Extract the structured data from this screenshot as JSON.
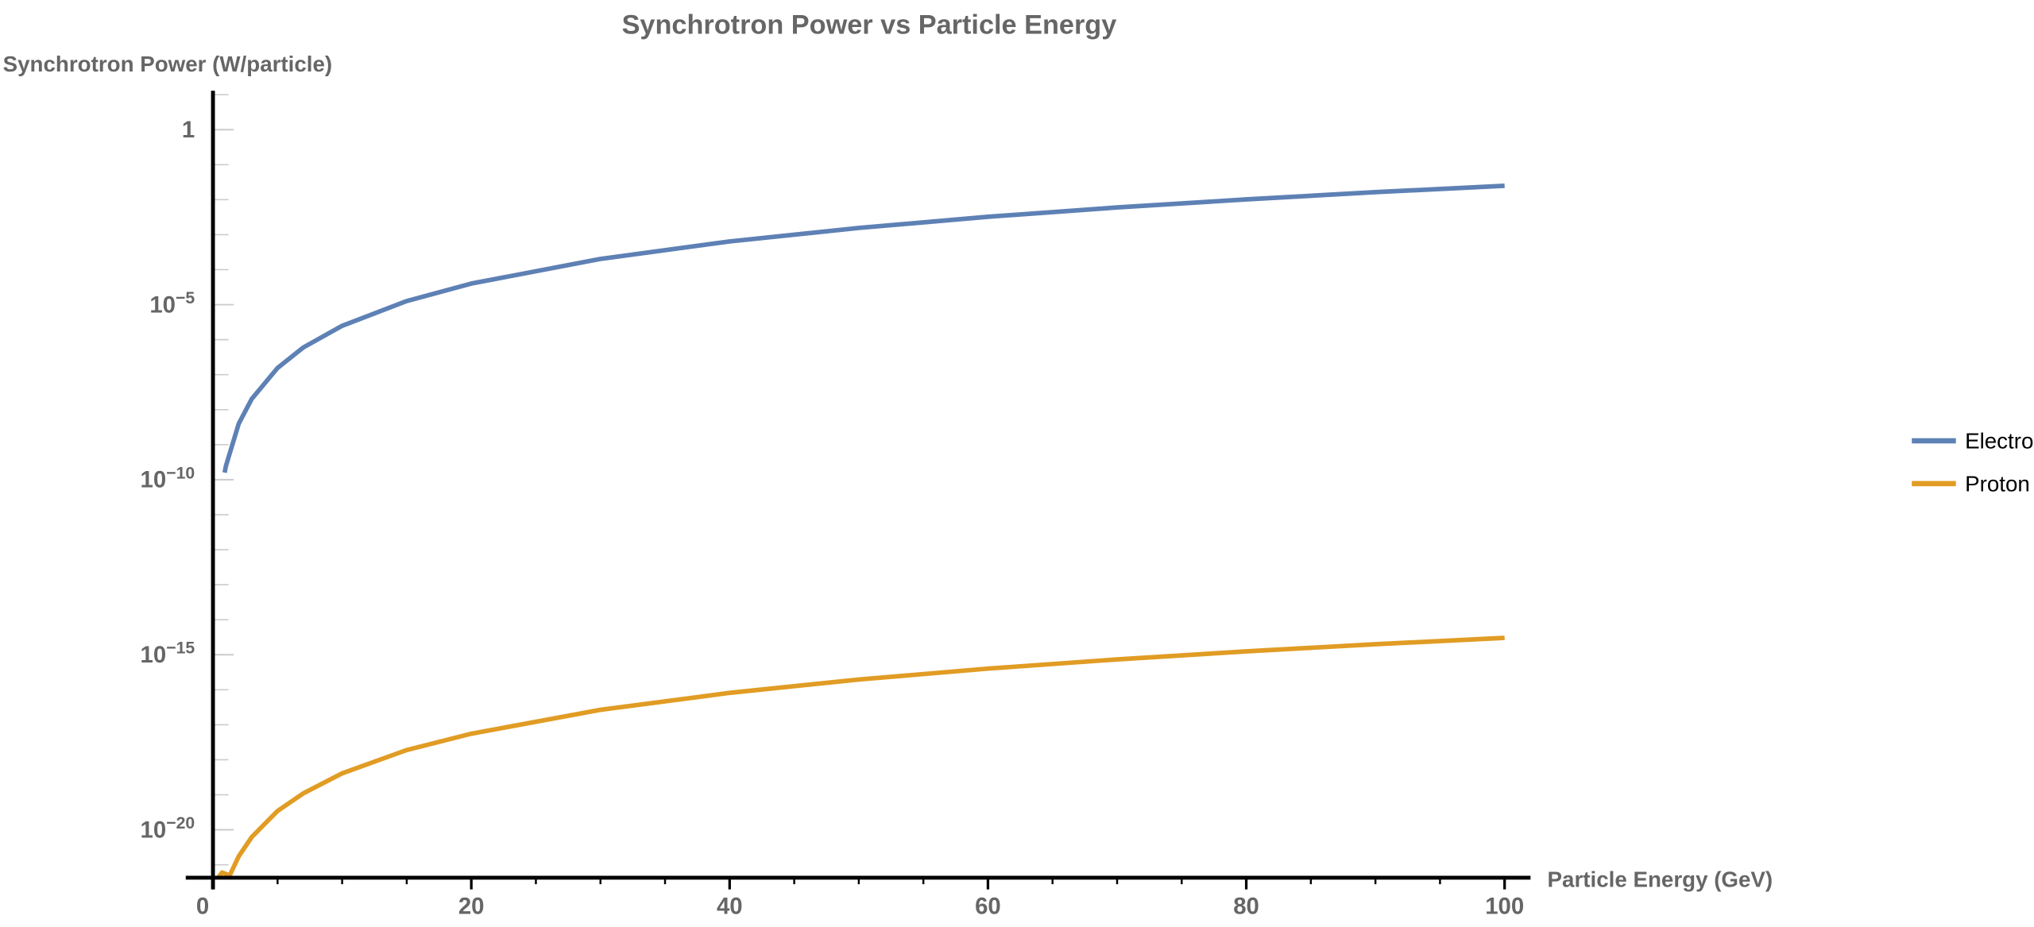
{
  "chart_data": {
    "type": "line",
    "title": "Synchrotron Power vs Particle Energy",
    "xlabel": "Particle Energy (GeV)",
    "ylabel": "Synchrotron Power (W/particle)",
    "yscale": "log",
    "xlim": [
      0,
      100
    ],
    "ylim": [
      4.3e-22,
      12
    ],
    "x_ticks": [
      0,
      20,
      40,
      60,
      80,
      100
    ],
    "x_tick_labels": [
      "0",
      "20",
      "40",
      "60",
      "80",
      "100"
    ],
    "y_ticks": [
      1,
      1e-05,
      1e-10,
      1e-15,
      1e-20
    ],
    "y_tick_labels": [
      {
        "base": "1",
        "exp": ""
      },
      {
        "base": "10",
        "exp": "−5"
      },
      {
        "base": "10",
        "exp": "−10"
      },
      {
        "base": "10",
        "exp": "−15"
      },
      {
        "base": "10",
        "exp": "−20"
      }
    ],
    "grid": false,
    "legend_position": "right",
    "series": [
      {
        "name": "Electron",
        "color": "#5e81b5",
        "x": [
          0.9,
          1,
          2,
          3,
          5,
          7,
          10,
          15,
          20,
          30,
          40,
          50,
          60,
          70,
          80,
          90,
          100
        ],
        "y": [
          1.6e-10,
          2.5e-10,
          4e-09,
          2.03e-08,
          1.56e-07,
          6e-07,
          2.5e-06,
          1.27e-05,
          4e-05,
          0.000203,
          0.00064,
          0.00156,
          0.00324,
          0.006,
          0.0102,
          0.0164,
          0.025
        ]
      },
      {
        "name": "Proton",
        "color": "#e19c24",
        "x": [
          0.4,
          0.7,
          1.3,
          2,
          3,
          5,
          7,
          10,
          15,
          20,
          30,
          40,
          50,
          60,
          70,
          80,
          90,
          100
        ],
        "y": [
          4.3e-22,
          6e-22,
          4.96e-22,
          1.75e-21,
          6.2e-21,
          3.44e-20,
          1.1e-19,
          4.1e-19,
          1.9e-18,
          5.57e-18,
          2.66e-17,
          8.17e-17,
          1.96e-16,
          4.01e-16,
          7.37e-16,
          1.25e-15,
          1.99e-15,
          3.02e-15
        ]
      }
    ]
  }
}
